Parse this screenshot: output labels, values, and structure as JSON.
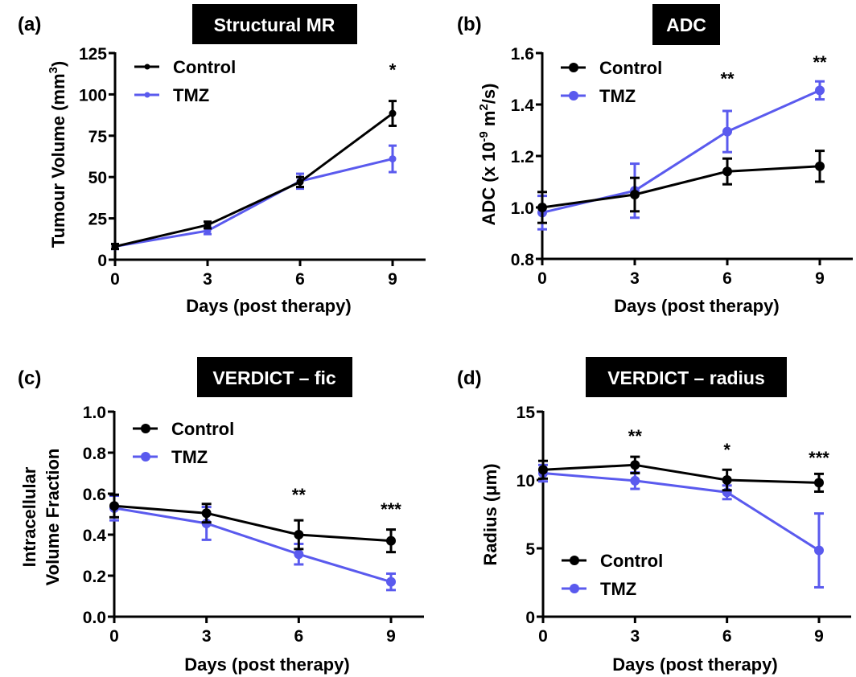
{
  "figure": {
    "colors": {
      "control": "#000000",
      "tmz": "#5a5aee"
    }
  },
  "chart_data": [
    {
      "type": "line",
      "panel": "(a)",
      "title": "Structural MR",
      "xlabel": "Days (post therapy)",
      "ylabel": "Tumour Volume (mm",
      "ylabel_sup": "3",
      "ylabel_tail": ")",
      "x": [
        0,
        3,
        6,
        9
      ],
      "xticks": [
        "0",
        "3",
        "6",
        "9"
      ],
      "xlim": [
        0,
        10.6
      ],
      "ylim": [
        0,
        125
      ],
      "yticks": [
        0,
        25,
        50,
        75,
        100,
        125
      ],
      "ytick_labels": [
        "0",
        "25",
        "50",
        "75",
        "100",
        "125"
      ],
      "legend": {
        "position": "top-left",
        "entries": [
          "Control",
          "TMZ"
        ]
      },
      "series": [
        {
          "name": "Control",
          "color_key": "control",
          "values": [
            8,
            21,
            47,
            88.5
          ],
          "errors": [
            1.5,
            2,
            3,
            7.5
          ]
        },
        {
          "name": "TMZ",
          "color_key": "tmz",
          "values": [
            8,
            17.5,
            47.5,
            61
          ],
          "errors": [
            1.5,
            2,
            4.5,
            8
          ]
        }
      ],
      "significance": [
        {
          "x": 9,
          "label": "*",
          "y": 118
        }
      ],
      "grid": false
    },
    {
      "type": "line",
      "panel": "(b)",
      "title": "ADC",
      "xlabel": "Days (post therapy)",
      "ylabel": "ADC (x 10",
      "ylabel_sup": "-9",
      "ylabel_mid": " m",
      "ylabel_sup2": "2",
      "ylabel_tail": "/s)",
      "x": [
        0,
        3,
        6,
        9
      ],
      "xticks": [
        "0",
        "3",
        "6",
        "9"
      ],
      "xlim": [
        0,
        10.6
      ],
      "ylim": [
        0.8,
        1.6
      ],
      "yticks": [
        0.8,
        1.0,
        1.2,
        1.4,
        1.6
      ],
      "ytick_labels": [
        "0.8",
        "1.0",
        "1.2",
        "1.4",
        "1.6"
      ],
      "legend": {
        "position": "top-left",
        "entries": [
          "Control",
          "TMZ"
        ]
      },
      "series": [
        {
          "name": "Control",
          "color_key": "control",
          "values": [
            1.0,
            1.05,
            1.14,
            1.16
          ],
          "errors": [
            0.06,
            0.065,
            0.05,
            0.06
          ]
        },
        {
          "name": "TMZ",
          "color_key": "tmz",
          "values": [
            0.98,
            1.065,
            1.295,
            1.455
          ],
          "errors": [
            0.065,
            0.105,
            0.08,
            0.035
          ]
        }
      ],
      "significance": [
        {
          "x": 6,
          "label": "**",
          "y": 1.52
        },
        {
          "x": 9,
          "label": "**",
          "y": 1.585
        }
      ],
      "grid": false
    },
    {
      "type": "line",
      "panel": "(c)",
      "title": "VERDICT – fic",
      "xlabel": "Days (post therapy)",
      "ylabel_line1": "Intracellular",
      "ylabel_line2": "Volume Fraction",
      "x": [
        0,
        3,
        6,
        9
      ],
      "xticks": [
        "0",
        "3",
        "6",
        "9"
      ],
      "xlim": [
        0,
        10.6
      ],
      "ylim": [
        0,
        1.0
      ],
      "yticks": [
        0,
        0.2,
        0.4,
        0.6,
        0.8,
        1.0
      ],
      "ytick_labels": [
        "0.0",
        "0.2",
        "0.4",
        "0.6",
        "0.8",
        "1.0"
      ],
      "legend": {
        "position": "top-left",
        "entries": [
          "Control",
          "TMZ"
        ]
      },
      "series": [
        {
          "name": "Control",
          "color_key": "control",
          "values": [
            0.54,
            0.505,
            0.4,
            0.37
          ],
          "errors": [
            0.055,
            0.045,
            0.07,
            0.055
          ]
        },
        {
          "name": "TMZ",
          "color_key": "tmz",
          "values": [
            0.53,
            0.455,
            0.305,
            0.17
          ],
          "errors": [
            0.06,
            0.08,
            0.05,
            0.04
          ]
        }
      ],
      "significance": [
        {
          "x": 6,
          "label": "**",
          "y": 0.62
        },
        {
          "x": 9,
          "label": "***",
          "y": 0.55
        }
      ],
      "grid": false
    },
    {
      "type": "line",
      "panel": "(d)",
      "title": "VERDICT – radius",
      "xlabel": "Days (post therapy)",
      "ylabel": "Radius (μm)",
      "x": [
        0,
        3,
        6,
        9
      ],
      "xticks": [
        "0",
        "3",
        "6",
        "9"
      ],
      "xlim": [
        0,
        10.6
      ],
      "ylim": [
        0,
        15
      ],
      "yticks": [
        0,
        5,
        10,
        15
      ],
      "ytick_labels": [
        "0",
        "5",
        "10",
        "15"
      ],
      "legend": {
        "position": "bottom-left",
        "entries": [
          "Control",
          "TMZ"
        ]
      },
      "series": [
        {
          "name": "Control",
          "color_key": "control",
          "values": [
            10.75,
            11.1,
            10.0,
            9.8
          ],
          "errors": [
            0.65,
            0.6,
            0.75,
            0.65
          ]
        },
        {
          "name": "TMZ",
          "color_key": "tmz",
          "values": [
            10.5,
            9.95,
            9.1,
            4.85
          ],
          "errors": [
            0.6,
            0.6,
            0.5,
            2.7
          ]
        }
      ],
      "significance": [
        {
          "x": 3,
          "label": "**",
          "y": 13.6
        },
        {
          "x": 6,
          "label": "*",
          "y": 12.6
        },
        {
          "x": 9,
          "label": "***",
          "y": 12.0
        }
      ],
      "grid": false
    }
  ]
}
